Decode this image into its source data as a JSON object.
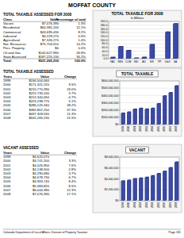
{
  "header": {
    "title": "MOFFAT COUNTY"
  },
  "tables": [
    {
      "title": "TOTAL TAXABLE ASSESSED FOR 2008",
      "columns": [
        "Class",
        "Value",
        "Percentage of total"
      ],
      "rows": [
        [
          "Vacant",
          "$7,076,390",
          "1.3%"
        ],
        [
          "Residential",
          "$64,381,240",
          "12.1%"
        ],
        [
          "Commercial",
          "$43,695,430",
          "8.2%"
        ],
        [
          "Industrial",
          "$3,229,270",
          "0.6%"
        ],
        [
          "Agricultural",
          "$7,326,270",
          "1.4%"
        ],
        [
          "Nat. Resources",
          "$75,703,510",
          "14.2%"
        ],
        [
          "Pers. Property",
          "$0",
          "0.0%"
        ],
        [
          "Oil and Gas",
          "$142,627,990",
          "26.8%"
        ],
        [
          "State Assessed",
          "$187,225,130",
          "35.2%"
        ]
      ],
      "total": [
        "Total:",
        "$531,265,230",
        "100.0%"
      ]
    },
    {
      "title": "TOTAL TAXABLE ASSESSED",
      "columns": [
        "Years",
        "Value",
        "Change"
      ],
      "rows": [
        [
          "1999",
          "$156,504,060",
          null
        ],
        [
          "2000",
          "$171,321,220",
          "9.5%"
        ],
        [
          "2001",
          "$210,770,390",
          "23.0%"
        ],
        [
          "2002",
          "$222,735,240",
          "5.7%"
        ],
        [
          "2003",
          "$212,340,050",
          "-4.7%"
        ],
        [
          "2004",
          "$223,198,770",
          "5.1%"
        ],
        [
          "2005",
          "$286,125,340",
          "28.2%"
        ],
        [
          "2006",
          "$392,867,150",
          "37.3%"
        ],
        [
          "2007",
          "$437,309,530",
          "11.3%"
        ],
        [
          "2008",
          "$531,265,230",
          "21.5%"
        ]
      ]
    },
    {
      "title": "VACANT ASSESSED",
      "columns": [
        "Years",
        "Value",
        "Change"
      ],
      "rows": [
        [
          "1999",
          "$3,620,070",
          null
        ],
        [
          "2000",
          "$3,741,200",
          "3.3%"
        ],
        [
          "2001",
          "$4,025,950",
          "7.6%"
        ],
        [
          "2002",
          "$4,138,500",
          "2.8%"
        ],
        [
          "2003",
          "$4,290,680",
          "3.7%"
        ],
        [
          "2004",
          "$4,578,730",
          "6.7%"
        ],
        [
          "2005",
          "$4,963,740",
          "8.4%"
        ],
        [
          "2006",
          "$5,383,820",
          "8.5%"
        ],
        [
          "2007",
          "$6,044,380",
          "12.3%"
        ],
        [
          "2008",
          "$7,076,390",
          "17.1%"
        ]
      ]
    }
  ],
  "chart_data": [
    {
      "type": "bar",
      "title": "TOTAL TAXABLE FOR 2008",
      "subtitle": "In Millions",
      "categories": [
        "VAC",
        "RES",
        "COM",
        "IND",
        "AG",
        "NR",
        "PP",
        "O&G",
        "SA"
      ],
      "values": [
        7.08,
        64.38,
        43.7,
        3.23,
        7.33,
        75.7,
        0,
        142.63,
        187.23
      ],
      "color": "#3a4aa8",
      "ylim": [
        0,
        200
      ],
      "yticks": [
        {
          "value": 0,
          "label": "0.0"
        },
        {
          "value": 20,
          "label": "20.0"
        },
        {
          "value": 40,
          "label": "40.0"
        },
        {
          "value": 60,
          "label": "60.0"
        },
        {
          "value": 80,
          "label": "80.0"
        },
        {
          "value": 100,
          "label": "100.0"
        },
        {
          "value": 120,
          "label": "120.0"
        },
        {
          "value": 140,
          "label": "140.0"
        },
        {
          "value": 160,
          "label": "160.0"
        },
        {
          "value": 180,
          "label": "180.0"
        },
        {
          "value": 200,
          "label": "200.0"
        }
      ],
      "grid": true
    },
    {
      "type": "bar",
      "title": "TOTAL TAXABLE",
      "categories": [
        "1999",
        "2000",
        "2001",
        "2002",
        "2003",
        "2004",
        "2005",
        "2006",
        "2007",
        "2008"
      ],
      "values": [
        156504060,
        171321220,
        210770390,
        222735240,
        212340050,
        223198770,
        286125340,
        392867150,
        437309530,
        531265230
      ],
      "color": "#3a4aa8",
      "ylim": [
        0,
        600000000
      ],
      "yticks": [
        {
          "value": 0,
          "label": "$0"
        },
        {
          "value": 100000000,
          "label": "$100,000,000"
        },
        {
          "value": 200000000,
          "label": "$200,000,000"
        },
        {
          "value": 300000000,
          "label": "$300,000,000"
        },
        {
          "value": 400000000,
          "label": "$400,000,000"
        },
        {
          "value": 500000000,
          "label": "$500,000,000"
        },
        {
          "value": 600000000,
          "label": "$600,000,000"
        }
      ],
      "grid": true
    },
    {
      "type": "bar",
      "title": "VACANT",
      "categories": [
        "1999",
        "2000",
        "2001",
        "2002",
        "2003",
        "2004",
        "2005",
        "2006",
        "2007",
        "2008"
      ],
      "values": [
        3620070,
        3741200,
        4025950,
        4138500,
        4290680,
        4578730,
        4963740,
        5383820,
        6044380,
        7076390
      ],
      "color": "#3a4aa8",
      "ylim": [
        0,
        8000000
      ],
      "yticks": [
        {
          "value": 0,
          "label": "$0"
        },
        {
          "value": 2000000,
          "label": "$2,000,000"
        },
        {
          "value": 4000000,
          "label": "$4,000,000"
        },
        {
          "value": 6000000,
          "label": "$6,000,000"
        },
        {
          "value": 8000000,
          "label": "$8,000,000"
        }
      ],
      "grid": true
    }
  ],
  "footer": {
    "source": "Colorado Department of Local Affairs, Division of Property Taxation",
    "page": "Page 181"
  }
}
